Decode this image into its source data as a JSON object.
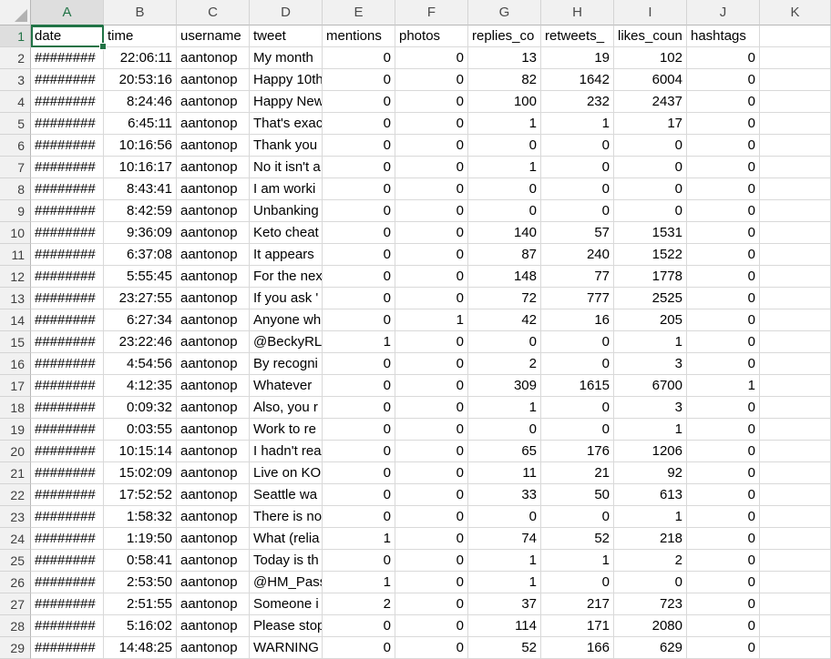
{
  "app": {
    "type": "spreadsheet-grid"
  },
  "selection": {
    "cell_ref": "A1",
    "selected_column": "A",
    "selected_row": "1"
  },
  "colors": {
    "accent_green": "#217346",
    "header_bg": "#F1F1F1",
    "selected_header_bg": "#DEDEDE",
    "gridline": "#D9D9D9",
    "header_border": "#B7B7B7"
  },
  "icons": {
    "select_all_triangle": "corner-triangle"
  },
  "columns": [
    "A",
    "B",
    "C",
    "D",
    "E",
    "F",
    "G",
    "H",
    "I",
    "J",
    "K"
  ],
  "header_row": {
    "n": "1",
    "cells": [
      "date",
      "time",
      "username",
      "tweet",
      "mentions",
      "photos",
      "replies_co",
      "retweets_",
      "likes_coun",
      "hashtags",
      ""
    ]
  },
  "rows": [
    {
      "n": "2",
      "cells": [
        "########",
        "22:06:11",
        "aantonop",
        "My month",
        "0",
        "0",
        "13",
        "19",
        "102",
        "0",
        ""
      ]
    },
    {
      "n": "3",
      "cells": [
        "########",
        "20:53:16",
        "aantonop",
        "Happy 10th",
        "0",
        "0",
        "82",
        "1642",
        "6004",
        "0",
        ""
      ]
    },
    {
      "n": "4",
      "cells": [
        "########",
        "8:24:46",
        "aantonop",
        "Happy New",
        "0",
        "0",
        "100",
        "232",
        "2437",
        "0",
        ""
      ]
    },
    {
      "n": "5",
      "cells": [
        "########",
        "6:45:11",
        "aantonop",
        "That's exac",
        "0",
        "0",
        "1",
        "1",
        "17",
        "0",
        ""
      ]
    },
    {
      "n": "6",
      "cells": [
        "########",
        "10:16:56",
        "aantonop",
        "Thank you",
        "0",
        "0",
        "0",
        "0",
        "0",
        "0",
        ""
      ]
    },
    {
      "n": "7",
      "cells": [
        "########",
        "10:16:17",
        "aantonop",
        "No it isn't a",
        "0",
        "0",
        "1",
        "0",
        "0",
        "0",
        ""
      ]
    },
    {
      "n": "8",
      "cells": [
        "########",
        "8:43:41",
        "aantonop",
        "I am worki",
        "0",
        "0",
        "0",
        "0",
        "0",
        "0",
        ""
      ]
    },
    {
      "n": "9",
      "cells": [
        "########",
        "8:42:59",
        "aantonop",
        "Unbanking",
        "0",
        "0",
        "0",
        "0",
        "0",
        "0",
        ""
      ]
    },
    {
      "n": "10",
      "cells": [
        "########",
        "9:36:09",
        "aantonop",
        "Keto cheat",
        "0",
        "0",
        "140",
        "57",
        "1531",
        "0",
        ""
      ]
    },
    {
      "n": "11",
      "cells": [
        "########",
        "6:37:08",
        "aantonop",
        "It appears",
        "0",
        "0",
        "87",
        "240",
        "1522",
        "0",
        ""
      ]
    },
    {
      "n": "12",
      "cells": [
        "########",
        "5:55:45",
        "aantonop",
        "For the nex",
        "0",
        "0",
        "148",
        "77",
        "1778",
        "0",
        ""
      ]
    },
    {
      "n": "13",
      "cells": [
        "########",
        "23:27:55",
        "aantonop",
        "If you ask '",
        "0",
        "0",
        "72",
        "777",
        "2525",
        "0",
        ""
      ]
    },
    {
      "n": "14",
      "cells": [
        "########",
        "6:27:34",
        "aantonop",
        "Anyone wh",
        "0",
        "1",
        "42",
        "16",
        "205",
        "0",
        ""
      ]
    },
    {
      "n": "15",
      "cells": [
        "########",
        "23:22:46",
        "aantonop",
        "@BeckyRL",
        "1",
        "0",
        "0",
        "0",
        "1",
        "0",
        ""
      ]
    },
    {
      "n": "16",
      "cells": [
        "########",
        "4:54:56",
        "aantonop",
        "By recogni",
        "0",
        "0",
        "2",
        "0",
        "3",
        "0",
        ""
      ]
    },
    {
      "n": "17",
      "cells": [
        "########",
        "4:12:35",
        "aantonop",
        "Whatever",
        "0",
        "0",
        "309",
        "1615",
        "6700",
        "1",
        ""
      ]
    },
    {
      "n": "18",
      "cells": [
        "########",
        "0:09:32",
        "aantonop",
        "Also, you r",
        "0",
        "0",
        "1",
        "0",
        "3",
        "0",
        ""
      ]
    },
    {
      "n": "19",
      "cells": [
        "########",
        "0:03:55",
        "aantonop",
        "Work to re",
        "0",
        "0",
        "0",
        "0",
        "1",
        "0",
        ""
      ]
    },
    {
      "n": "20",
      "cells": [
        "########",
        "10:15:14",
        "aantonop",
        "I hadn't rea",
        "0",
        "0",
        "65",
        "176",
        "1206",
        "0",
        ""
      ]
    },
    {
      "n": "21",
      "cells": [
        "########",
        "15:02:09",
        "aantonop",
        "Live on KO",
        "0",
        "0",
        "11",
        "21",
        "92",
        "0",
        ""
      ]
    },
    {
      "n": "22",
      "cells": [
        "########",
        "17:52:52",
        "aantonop",
        "Seattle wa",
        "0",
        "0",
        "33",
        "50",
        "613",
        "0",
        ""
      ]
    },
    {
      "n": "23",
      "cells": [
        "########",
        "1:58:32",
        "aantonop",
        "There is no",
        "0",
        "0",
        "0",
        "0",
        "1",
        "0",
        ""
      ]
    },
    {
      "n": "24",
      "cells": [
        "########",
        "1:19:50",
        "aantonop",
        "What (relia",
        "1",
        "0",
        "74",
        "52",
        "218",
        "0",
        ""
      ]
    },
    {
      "n": "25",
      "cells": [
        "########",
        "0:58:41",
        "aantonop",
        "Today is th",
        "0",
        "0",
        "1",
        "1",
        "2",
        "0",
        ""
      ]
    },
    {
      "n": "26",
      "cells": [
        "########",
        "2:53:50",
        "aantonop",
        "@HM_Pass",
        "1",
        "0",
        "1",
        "0",
        "0",
        "0",
        ""
      ]
    },
    {
      "n": "27",
      "cells": [
        "########",
        "2:51:55",
        "aantonop",
        "Someone i",
        "2",
        "0",
        "37",
        "217",
        "723",
        "0",
        ""
      ]
    },
    {
      "n": "28",
      "cells": [
        "########",
        "5:16:02",
        "aantonop",
        "Please stop",
        "0",
        "0",
        "114",
        "171",
        "2080",
        "0",
        ""
      ]
    },
    {
      "n": "29",
      "cells": [
        "########",
        "14:48:25",
        "aantonop",
        "WARNING",
        "0",
        "0",
        "52",
        "166",
        "629",
        "0",
        ""
      ]
    }
  ]
}
